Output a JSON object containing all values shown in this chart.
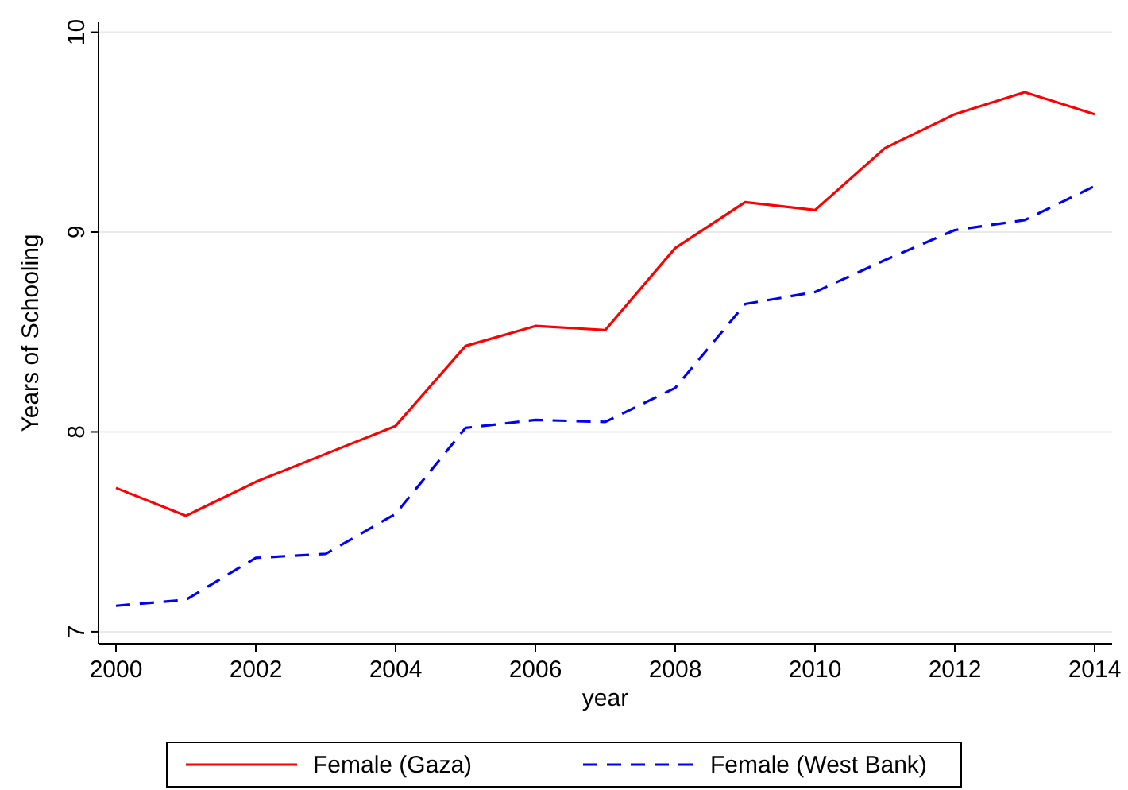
{
  "chart_data": {
    "type": "line",
    "xlabel": "year",
    "ylabel": "Years of Schooling",
    "x": [
      2000,
      2001,
      2002,
      2003,
      2004,
      2005,
      2006,
      2007,
      2008,
      2009,
      2010,
      2011,
      2012,
      2013,
      2014
    ],
    "xlim": [
      1999.75,
      2014.25
    ],
    "xticks": [
      2000,
      2002,
      2004,
      2006,
      2008,
      2010,
      2012,
      2014
    ],
    "ylim": [
      6.94,
      10.05
    ],
    "yticks": [
      7,
      8,
      9,
      10
    ],
    "grid": "y",
    "legend": "bottom",
    "series": [
      {
        "name": "Female (Gaza)",
        "color": "#ff0000",
        "line_style": "solid",
        "values": [
          7.72,
          7.58,
          7.75,
          7.89,
          8.03,
          8.43,
          8.53,
          8.51,
          8.92,
          9.15,
          9.11,
          9.42,
          9.59,
          9.7,
          9.59
        ]
      },
      {
        "name": "Female (West Bank)",
        "color": "#0000ff",
        "line_style": "dashed",
        "values": [
          7.13,
          7.16,
          7.37,
          7.39,
          7.59,
          8.02,
          8.06,
          8.05,
          8.22,
          8.64,
          8.7,
          8.86,
          9.01,
          9.06,
          9.23
        ]
      }
    ]
  }
}
